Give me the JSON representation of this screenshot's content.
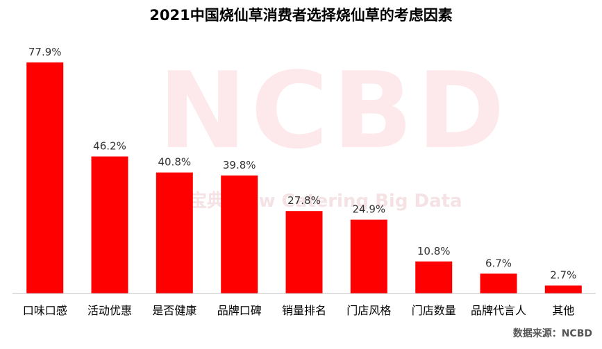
{
  "title": "2021中国烧仙草消费者选择烧仙草的考虑因素",
  "source": "数据来源：NCBD",
  "watermark": {
    "main": "NCBD",
    "sub": "宝典 New Catering Big Data"
  },
  "colors": {
    "bar": "#ff0000",
    "axis": "#bfbfbf",
    "label": "#333333",
    "watermark": "#fde9ec"
  },
  "chart_data": {
    "type": "bar",
    "title": "2021中国烧仙草消费者选择烧仙草的考虑因素",
    "xlabel": "",
    "ylabel": "",
    "unit": "%",
    "ylim": [
      0,
      80
    ],
    "grid": false,
    "legend": "none",
    "categories": [
      "口味口感",
      "活动优惠",
      "是否健康",
      "品牌口碑",
      "销量排名",
      "门店风格",
      "门店数量",
      "品牌代言人",
      "其他"
    ],
    "values": [
      77.9,
      46.2,
      40.8,
      39.8,
      27.8,
      24.9,
      10.8,
      6.7,
      2.7
    ],
    "value_labels": [
      "77.9%",
      "46.2%",
      "40.8%",
      "39.8%",
      "27.8%",
      "24.9%",
      "10.8%",
      "6.7%",
      "2.7%"
    ]
  }
}
